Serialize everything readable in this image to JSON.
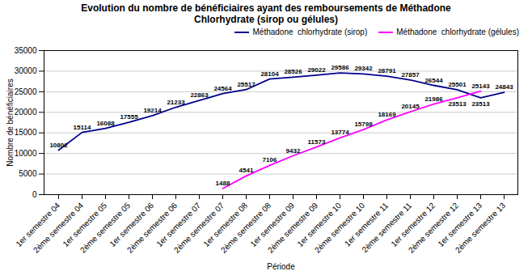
{
  "chart_data": {
    "type": "line",
    "title": "Evolution du nombre de bénéficiaires ayant des remboursements de Méthadone\nChlorhydrate (sirop ou gélules)",
    "x_label": "Période",
    "y_label": "Nombre de bénéficiaires",
    "categories": [
      "1er semestre 04",
      "2ème semestre 04",
      "1er semestre 05",
      "2ème semestre 05",
      "1er semestre 06",
      "2ème semestre 06",
      "1er semestre 07",
      "2ème semestre 07",
      "1er semestre 08",
      "2ème semestre 08",
      "1er semestre 09",
      "2ème semestre 09",
      "1er semestre 10",
      "2ème semestre 10",
      "1er semestre 11",
      "2ème semestre 11",
      "1er semestre 12",
      "2ème semestre 12",
      "1er semestre 13",
      "2ème semestre 13"
    ],
    "series": [
      {
        "name": "Méthadone  chlorhydrate (sirop)",
        "color": "#00008B",
        "values": [
          10802,
          15114,
          16088,
          17555,
          19214,
          21233,
          22863,
          24564,
          25517,
          28104,
          28526,
          29022,
          29586,
          29342,
          28791,
          27857,
          26544,
          25501,
          23513,
          24843
        ]
      },
      {
        "name": "Méthadone  chlorhydrate (gélules)",
        "color": "#FF00FF",
        "values": [
          null,
          null,
          null,
          null,
          null,
          null,
          null,
          1488,
          4541,
          7106,
          9432,
          11573,
          13774,
          15798,
          18169,
          20145,
          21986,
          23513,
          25143,
          null
        ]
      }
    ],
    "ylim": [
      0,
      35000
    ],
    "yticks": [
      0,
      5000,
      10000,
      15000,
      20000,
      25000,
      30000,
      35000
    ],
    "grid": true,
    "legend": "upper right",
    "data_labels": true
  }
}
